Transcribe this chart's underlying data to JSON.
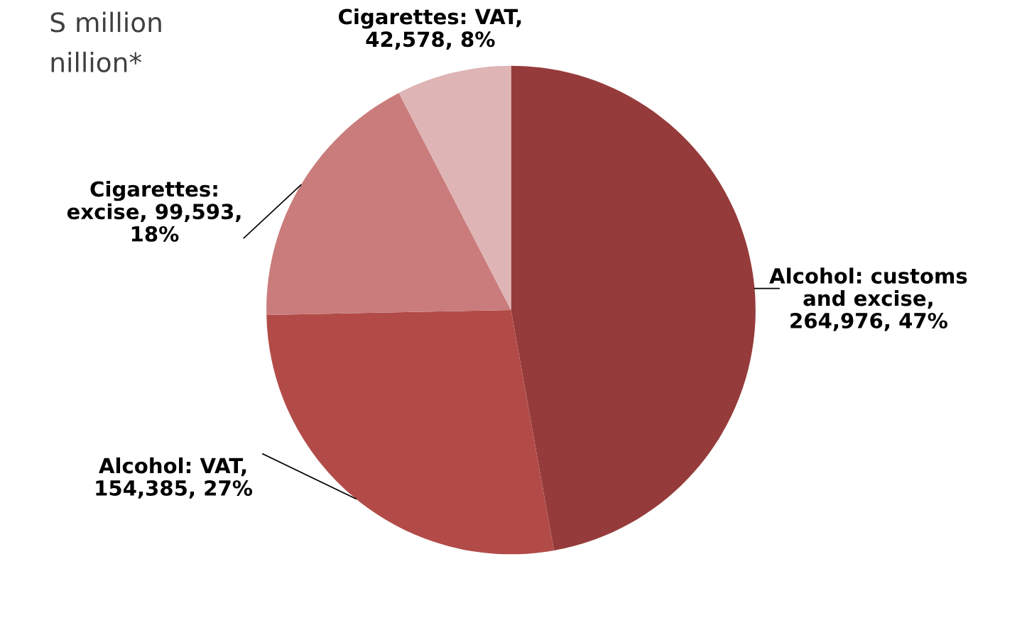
{
  "chart_data": {
    "type": "pie",
    "categories": [
      "Alcohol: customs and excise",
      "Alcohol: VAT",
      "Cigarettes: excise",
      "Cigarettes: VAT"
    ],
    "values": [
      264976,
      154385,
      99593,
      42578
    ],
    "value_labels": [
      ", 264,976, 47%",
      ", 154,385, 27%",
      ", 99,593, 18%",
      ", 42,578, 8%"
    ],
    "colors": [
      "#963b3b",
      "#b24b48",
      "#c97c7b",
      "#dfb4b4"
    ],
    "annotations": [
      "S million",
      "nillion*"
    ],
    "legend": false
  }
}
